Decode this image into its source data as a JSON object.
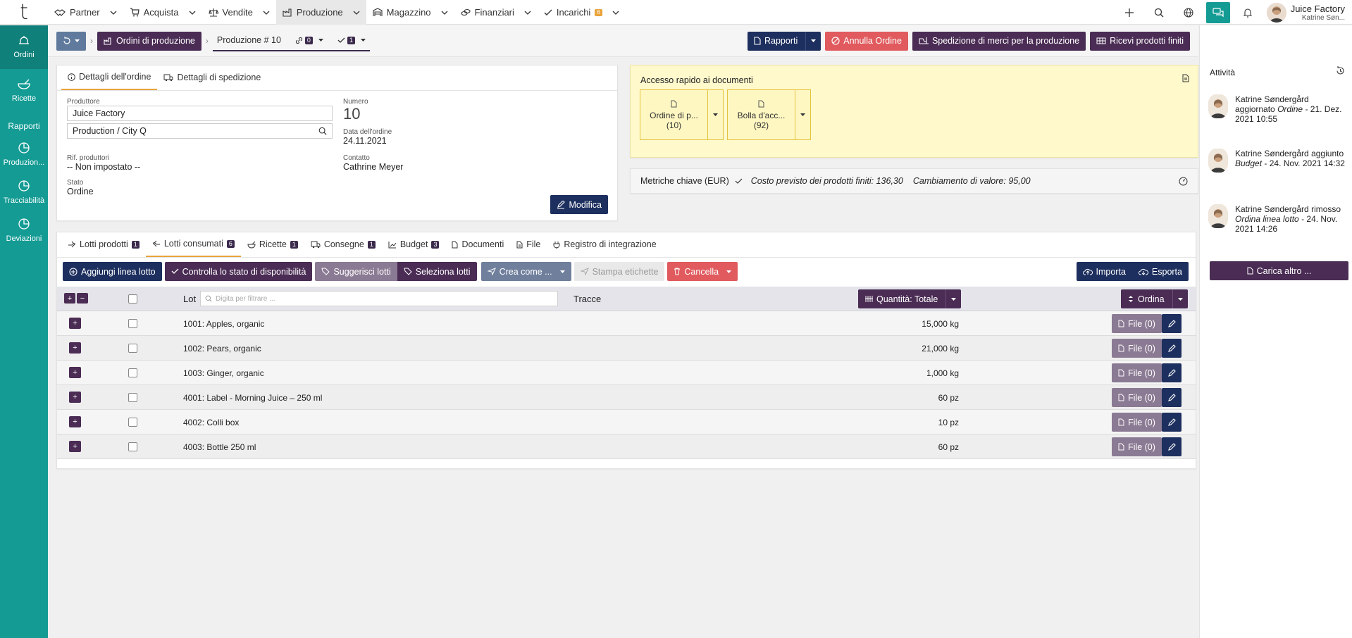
{
  "topnav": {
    "logo": "t",
    "menu": [
      {
        "label": "Partner",
        "icon": "handshake-icon"
      },
      {
        "label": "Acquista",
        "icon": "cart-icon"
      },
      {
        "label": "Vendite",
        "icon": "scale-icon"
      },
      {
        "label": "Produzione",
        "icon": "factory-icon"
      },
      {
        "label": "Magazzino",
        "icon": "warehouse-icon"
      },
      {
        "label": "Finanziari",
        "icon": "coins-icon"
      },
      {
        "label": "Incarichi",
        "icon": "check-icon",
        "badge": "6"
      }
    ],
    "company": "Juice Factory",
    "user": "Katrine Søn..."
  },
  "sidebar": {
    "items": [
      {
        "label": "Ordini",
        "icon": "bell-icon"
      },
      {
        "label": "Ricette",
        "icon": "mortar-icon"
      }
    ],
    "section": "Rapporti",
    "reports": [
      {
        "label": "Produzion...",
        "icon": "pie-chart-icon"
      },
      {
        "label": "Tracciabilità",
        "icon": "pie-chart-icon"
      },
      {
        "label": "Deviazioni",
        "icon": "pie-chart-icon"
      }
    ]
  },
  "toolbar": {
    "breadcrumb": "Ordini di produzione",
    "current": "Produzione # 10",
    "links_count": "0",
    "checks_count": "1",
    "rapporti": "Rapporti",
    "annulla": "Annulla Ordine",
    "spedizione": "Spedizione di merci per la produzione",
    "ricevi": "Ricevi prodotti finiti"
  },
  "order": {
    "tab_details": "Dettagli dell'ordine",
    "tab_shipping": "Dettagli di spedizione",
    "producer_label": "Produttore",
    "producer": "Juice Factory",
    "location": "Production / City Q",
    "number_label": "Numero",
    "number": "10",
    "date_label": "Data dell'ordine",
    "date": "24.11.2021",
    "ref_label": "Rif. produttori",
    "ref": "-- Non impostato --",
    "contact_label": "Contatto",
    "contact": "Cathrine Meyer",
    "status_label": "Stato",
    "status": "Ordine",
    "edit": "Modifica"
  },
  "docs": {
    "title": "Accesso rapido ai documenti",
    "tiles": [
      {
        "line1": "Ordine di p...",
        "line2": "(10)"
      },
      {
        "line1": "Bolla d'acc...",
        "line2": "(92)"
      }
    ]
  },
  "metrics": {
    "title": "Metriche chiave (EUR)",
    "cost": "Costo previsto dei prodotti finiti: 136,30",
    "change": "Cambiamento di valore: 95,00"
  },
  "lots": {
    "tabs": [
      {
        "label": "Lotti prodotti",
        "badge": "1",
        "icon": "box-icon"
      },
      {
        "label": "Lotti consumati",
        "badge": "6",
        "icon": "box-out-icon"
      },
      {
        "label": "Ricette",
        "badge": "1",
        "icon": "mortar-icon"
      },
      {
        "label": "Consegne",
        "badge": "1",
        "icon": "truck-icon"
      },
      {
        "label": "Budget",
        "badge": "3",
        "icon": "chart-icon"
      },
      {
        "label": "Documenti",
        "badge": "",
        "icon": "doc-icon"
      },
      {
        "label": "File",
        "badge": "",
        "icon": "file-icon"
      },
      {
        "label": "Registro di integrazione",
        "badge": "",
        "icon": "plug-icon"
      }
    ],
    "actions": {
      "add": "Aggiungi linea lotto",
      "check": "Controlla lo stato di disponibilità",
      "suggest": "Suggerisci lotti",
      "select": "Seleziona lotti",
      "create": "Crea come ...",
      "print": "Stampa etichette",
      "cancel": "Cancella",
      "import": "Importa",
      "export": "Esporta"
    },
    "head": {
      "lot": "Lot",
      "filter_placeholder": "Digita per filtrare ...",
      "traces": "Tracce",
      "quantity": "Quantità: Totale",
      "sort": "Ordina"
    },
    "rows": [
      {
        "lot": "1001: Apples, organic",
        "qty": "15,000 kg",
        "files": "File (0)"
      },
      {
        "lot": "1002: Pears, organic",
        "qty": "21,000 kg",
        "files": "File (0)"
      },
      {
        "lot": "1003: Ginger, organic",
        "qty": "1,000 kg",
        "files": "File (0)"
      },
      {
        "lot": "4001: Label - Morning Juice – 250 ml",
        "qty": "60 pz",
        "files": "File (0)"
      },
      {
        "lot": "4002: Colli box",
        "qty": "10 pz",
        "files": "File (0)"
      },
      {
        "lot": "4003: Bottle 250 ml",
        "qty": "60 pz",
        "files": "File (0)"
      }
    ]
  },
  "activity": {
    "title": "Attività",
    "items": [
      {
        "user": "Katrine Søndergård",
        "verb": "aggiornato",
        "object": "Ordine",
        "when": "- 21. Dez. 2021 10:55"
      },
      {
        "user": "Katrine Søndergård",
        "verb": "aggiunto",
        "object": "Budget",
        "when": "- 24. Nov. 2021 14:32"
      },
      {
        "user": "Katrine Søndergård",
        "verb": "rimosso",
        "object": "Ordina linea lotto",
        "when": "- 24. Nov. 2021 14:26"
      }
    ],
    "load_more": "Carica altro ..."
  }
}
